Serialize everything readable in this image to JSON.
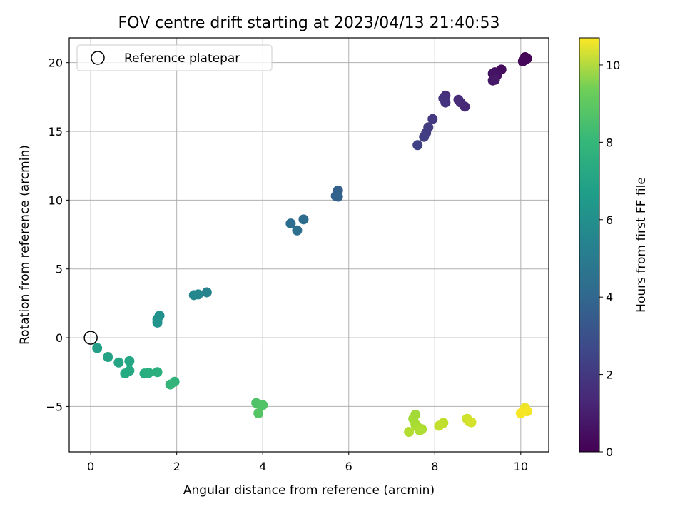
{
  "chart_data": {
    "type": "scatter",
    "title": "FOV centre drift starting at 2023/04/13 21:40:53",
    "xlabel": "Angular distance from reference (arcmin)",
    "ylabel": "Rotation from reference (arcmin)",
    "xlim": [
      -0.5,
      10.65
    ],
    "ylim": [
      -8.3,
      21.8
    ],
    "xticks": [
      0,
      2,
      4,
      6,
      8,
      10
    ],
    "yticks": [
      -5,
      0,
      5,
      10,
      15,
      20
    ],
    "xtick_labels": [
      "0",
      "2",
      "4",
      "6",
      "8",
      "10"
    ],
    "ytick_labels": [
      "−5",
      "0",
      "5",
      "10",
      "15",
      "20"
    ],
    "grid": true,
    "legend": {
      "position": "top-left",
      "label": "Reference platepar"
    },
    "reference_point": {
      "x": 0,
      "y": 0
    },
    "colorbar": {
      "label": "Hours from first FF file",
      "min": 0,
      "max": 10.7,
      "colormap": "viridis",
      "ticks": [
        0,
        2,
        4,
        6,
        8,
        10
      ],
      "tick_labels": [
        "0",
        "2",
        "4",
        "6",
        "8",
        "10"
      ]
    },
    "points": [
      {
        "x": 10.1,
        "y": 20.4,
        "t": 0.05
      },
      {
        "x": 10.15,
        "y": 20.3,
        "t": 0.1
      },
      {
        "x": 10.1,
        "y": 20.2,
        "t": 0.15
      },
      {
        "x": 10.05,
        "y": 20.1,
        "t": 0.2
      },
      {
        "x": 9.55,
        "y": 19.5,
        "t": 0.35
      },
      {
        "x": 9.4,
        "y": 19.3,
        "t": 0.45
      },
      {
        "x": 9.45,
        "y": 19.1,
        "t": 0.5
      },
      {
        "x": 9.35,
        "y": 19.2,
        "t": 0.55
      },
      {
        "x": 9.4,
        "y": 18.9,
        "t": 0.6
      },
      {
        "x": 9.35,
        "y": 18.7,
        "t": 0.65
      },
      {
        "x": 9.4,
        "y": 18.75,
        "t": 0.7
      },
      {
        "x": 8.7,
        "y": 16.8,
        "t": 1.2
      },
      {
        "x": 8.6,
        "y": 17.1,
        "t": 1.3
      },
      {
        "x": 8.55,
        "y": 17.3,
        "t": 1.35
      },
      {
        "x": 8.25,
        "y": 17.6,
        "t": 1.5
      },
      {
        "x": 8.25,
        "y": 17.1,
        "t": 1.55
      },
      {
        "x": 8.2,
        "y": 17.4,
        "t": 1.6
      },
      {
        "x": 7.95,
        "y": 15.9,
        "t": 1.8
      },
      {
        "x": 7.85,
        "y": 15.3,
        "t": 1.9
      },
      {
        "x": 7.8,
        "y": 14.9,
        "t": 1.95
      },
      {
        "x": 7.75,
        "y": 14.6,
        "t": 2.0
      },
      {
        "x": 7.6,
        "y": 14.0,
        "t": 2.1
      },
      {
        "x": 5.75,
        "y": 10.7,
        "t": 3.3
      },
      {
        "x": 5.7,
        "y": 10.3,
        "t": 3.35
      },
      {
        "x": 5.75,
        "y": 10.25,
        "t": 3.4
      },
      {
        "x": 4.95,
        "y": 8.6,
        "t": 3.8
      },
      {
        "x": 4.65,
        "y": 8.3,
        "t": 3.9
      },
      {
        "x": 4.8,
        "y": 7.8,
        "t": 3.95
      },
      {
        "x": 2.7,
        "y": 3.3,
        "t": 4.8
      },
      {
        "x": 2.5,
        "y": 3.15,
        "t": 4.9
      },
      {
        "x": 2.4,
        "y": 3.1,
        "t": 4.95
      },
      {
        "x": 1.6,
        "y": 1.6,
        "t": 5.4
      },
      {
        "x": 1.55,
        "y": 1.35,
        "t": 5.5
      },
      {
        "x": 1.55,
        "y": 1.1,
        "t": 5.55
      },
      {
        "x": 0.15,
        "y": -0.75,
        "t": 6.0
      },
      {
        "x": 0.4,
        "y": -1.4,
        "t": 6.15
      },
      {
        "x": 0.65,
        "y": -1.8,
        "t": 6.3
      },
      {
        "x": 0.9,
        "y": -1.7,
        "t": 6.35
      },
      {
        "x": 0.9,
        "y": -2.4,
        "t": 6.5
      },
      {
        "x": 0.8,
        "y": -2.6,
        "t": 6.55
      },
      {
        "x": 1.25,
        "y": -2.6,
        "t": 6.7
      },
      {
        "x": 1.35,
        "y": -2.55,
        "t": 6.75
      },
      {
        "x": 1.55,
        "y": -2.5,
        "t": 6.8
      },
      {
        "x": 1.95,
        "y": -3.2,
        "t": 7.0
      },
      {
        "x": 1.85,
        "y": -3.4,
        "t": 7.05
      },
      {
        "x": 3.85,
        "y": -4.75,
        "t": 7.7
      },
      {
        "x": 4.0,
        "y": -4.9,
        "t": 7.8
      },
      {
        "x": 3.9,
        "y": -5.5,
        "t": 7.85
      },
      {
        "x": 7.55,
        "y": -5.6,
        "t": 9.2
      },
      {
        "x": 7.5,
        "y": -5.9,
        "t": 9.25
      },
      {
        "x": 7.55,
        "y": -6.3,
        "t": 9.3
      },
      {
        "x": 7.6,
        "y": -6.5,
        "t": 9.35
      },
      {
        "x": 7.7,
        "y": -6.65,
        "t": 9.4
      },
      {
        "x": 7.65,
        "y": -6.75,
        "t": 9.45
      },
      {
        "x": 7.4,
        "y": -6.85,
        "t": 9.5
      },
      {
        "x": 8.2,
        "y": -6.2,
        "t": 9.7
      },
      {
        "x": 8.1,
        "y": -6.4,
        "t": 9.75
      },
      {
        "x": 8.75,
        "y": -5.9,
        "t": 9.95
      },
      {
        "x": 8.8,
        "y": -6.1,
        "t": 10.0
      },
      {
        "x": 8.85,
        "y": -6.15,
        "t": 10.05
      },
      {
        "x": 10.1,
        "y": -5.1,
        "t": 10.45
      },
      {
        "x": 10.15,
        "y": -5.35,
        "t": 10.55
      },
      {
        "x": 10.0,
        "y": -5.5,
        "t": 10.6
      }
    ]
  }
}
